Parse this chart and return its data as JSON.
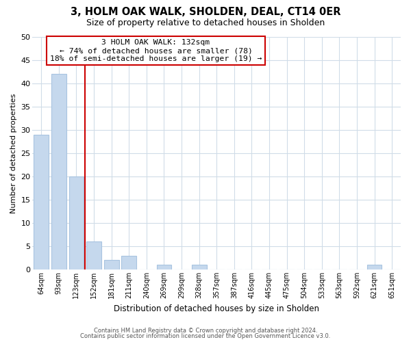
{
  "title": "3, HOLM OAK WALK, SHOLDEN, DEAL, CT14 0ER",
  "subtitle": "Size of property relative to detached houses in Sholden",
  "xlabel": "Distribution of detached houses by size in Sholden",
  "ylabel": "Number of detached properties",
  "bar_labels": [
    "64sqm",
    "93sqm",
    "123sqm",
    "152sqm",
    "181sqm",
    "211sqm",
    "240sqm",
    "269sqm",
    "299sqm",
    "328sqm",
    "357sqm",
    "387sqm",
    "416sqm",
    "445sqm",
    "475sqm",
    "504sqm",
    "533sqm",
    "563sqm",
    "592sqm",
    "621sqm",
    "651sqm"
  ],
  "bar_values": [
    29,
    42,
    20,
    6,
    2,
    3,
    0,
    1,
    0,
    1,
    0,
    0,
    0,
    0,
    0,
    0,
    0,
    0,
    0,
    1,
    0
  ],
  "bar_color": "#c5d8ed",
  "bar_edge_color": "#a8c4e0",
  "vline_x": 2.5,
  "vline_color": "#cc0000",
  "annotation_title": "3 HOLM OAK WALK: 132sqm",
  "annotation_line1": "← 74% of detached houses are smaller (78)",
  "annotation_line2": "18% of semi-detached houses are larger (19) →",
  "annotation_box_color": "#ffffff",
  "annotation_box_edge": "#cc0000",
  "ylim": [
    0,
    50
  ],
  "yticks": [
    0,
    5,
    10,
    15,
    20,
    25,
    30,
    35,
    40,
    45,
    50
  ],
  "footer1": "Contains HM Land Registry data © Crown copyright and database right 2024.",
  "footer2": "Contains public sector information licensed under the Open Government Licence v3.0.",
  "bg_color": "#ffffff",
  "grid_color": "#d0dce8"
}
